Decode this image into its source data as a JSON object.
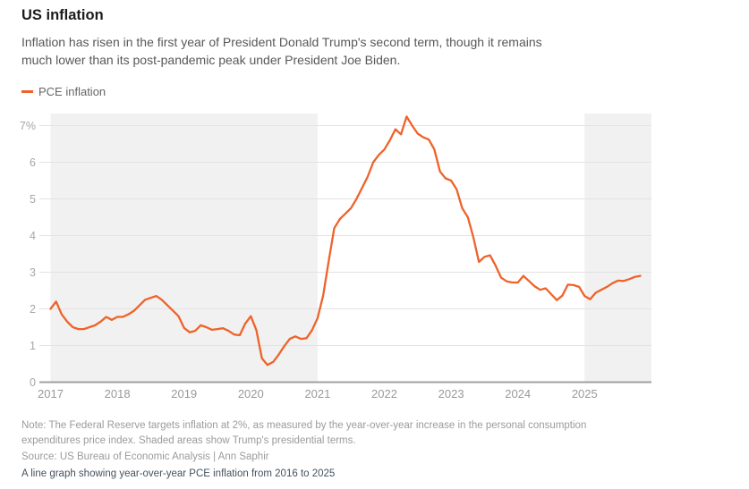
{
  "header": {
    "title": "US inflation",
    "subtitle_lines": [
      "Inflation has risen in the first year of President Donald Trump's second term, though it remains",
      "much lower than its post-pandemic peak under President Joe Biden."
    ]
  },
  "legend": {
    "label": "PCE inflation"
  },
  "footer": {
    "note_lines": [
      "Note: The Federal Reserve targets inflation at 2%, as measured by the year-over-year increase in the personal consumption",
      "expenditures price index. Shaded areas show Trump's presidential terms."
    ],
    "source": "Source: US Bureau of Economic Analysis | Ann Saphir",
    "alt_text": "A line graph showing year-over-year PCE inflation from 2016 to 2025"
  },
  "colors": {
    "line": "#ee6329",
    "band": "#f1f1f1",
    "grid": "#e3e3e3",
    "axis_line": "#a0a0a0",
    "y_tick_label": "#a6a6a6",
    "x_tick_label": "#999999",
    "alt_text": "#46525d"
  },
  "chart_data": {
    "type": "line",
    "title": "US inflation",
    "xlabel": "",
    "ylabel": "",
    "xlim": [
      2017,
      2026
    ],
    "ylim": [
      0,
      7.35
    ],
    "grid": "horizontal",
    "legend_position": "top-left",
    "x_ticks": [
      2017,
      2018,
      2019,
      2020,
      2021,
      2022,
      2023,
      2024,
      2025
    ],
    "y_ticks": [
      0,
      1,
      2,
      3,
      4,
      5,
      6,
      7
    ],
    "y_tick_labels": [
      "0",
      "1",
      "2",
      "3",
      "4",
      "5",
      "6",
      "7%"
    ],
    "shaded_bands": [
      {
        "from": 2017,
        "to": 2021
      },
      {
        "from": 2025,
        "to": 2026
      }
    ],
    "series": [
      {
        "name": "PCE inflation",
        "color": "#ee6329",
        "frequency": "monthly",
        "start": "2017-01",
        "end": "2025-11",
        "values": [
          2.0,
          2.2,
          1.85,
          1.65,
          1.5,
          1.45,
          1.45,
          1.5,
          1.55,
          1.65,
          1.78,
          1.7,
          1.78,
          1.78,
          1.85,
          1.95,
          2.1,
          2.25,
          2.3,
          2.35,
          2.25,
          2.1,
          1.95,
          1.8,
          1.48,
          1.36,
          1.4,
          1.55,
          1.5,
          1.43,
          1.45,
          1.47,
          1.4,
          1.3,
          1.28,
          1.6,
          1.8,
          1.42,
          0.65,
          0.47,
          0.55,
          0.75,
          0.98,
          1.18,
          1.25,
          1.18,
          1.2,
          1.42,
          1.75,
          2.36,
          3.3,
          4.2,
          4.45,
          4.6,
          4.75,
          5.0,
          5.3,
          5.6,
          6.0,
          6.2,
          6.35,
          6.6,
          6.9,
          6.76,
          7.25,
          7.0,
          6.78,
          6.68,
          6.62,
          6.35,
          5.75,
          5.56,
          5.5,
          5.26,
          4.75,
          4.5,
          3.95,
          3.28,
          3.42,
          3.46,
          3.18,
          2.85,
          2.75,
          2.72,
          2.72,
          2.9,
          2.76,
          2.62,
          2.52,
          2.56,
          2.4,
          2.24,
          2.36,
          2.66,
          2.65,
          2.6,
          2.35,
          2.26,
          2.44,
          2.52,
          2.6,
          2.7,
          2.77,
          2.76,
          2.81,
          2.87,
          2.9
        ]
      }
    ]
  }
}
